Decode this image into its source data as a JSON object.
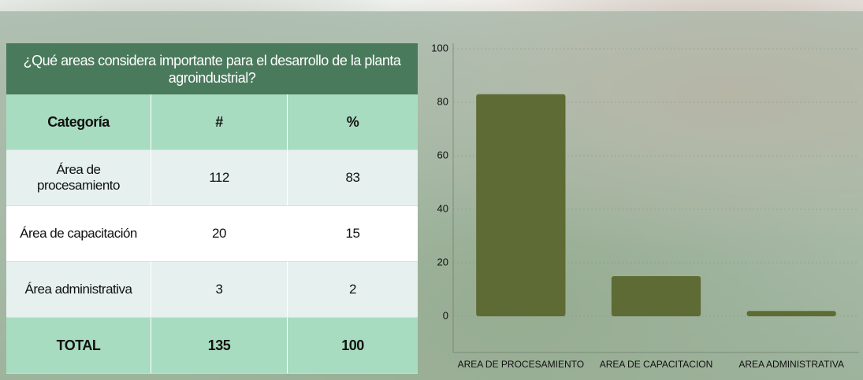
{
  "table": {
    "title": "¿Qué areas considera importante para el desarrollo de la planta agroindustrial?",
    "header": [
      "Categoría",
      "#",
      "%"
    ],
    "rows": [
      [
        "Área de procesamiento",
        112,
        83
      ],
      [
        "Área de capacitación",
        20,
        15
      ],
      [
        "Área administrativa",
        3,
        2
      ]
    ],
    "total": [
      "TOTAL",
      135,
      100
    ]
  },
  "chart_data": {
    "type": "bar",
    "categories": [
      "AREA DE PROCESAMIENTO",
      "AREA DE CAPACITACION",
      "AREA ADMINISTRATIVA"
    ],
    "values": [
      83,
      15,
      2
    ],
    "color": "#5e6b34",
    "ylim": [
      0,
      100
    ],
    "yticks": [
      0,
      20,
      40,
      60,
      80,
      100
    ],
    "grid": true
  }
}
